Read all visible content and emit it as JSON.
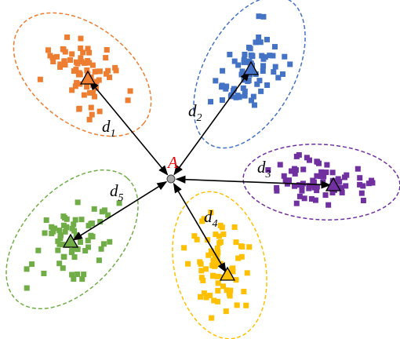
{
  "center": {
    "label": "A"
  },
  "clusters": [
    {
      "color": "#ed7d31",
      "distance": {
        "letter": "d",
        "subscript": "1"
      }
    },
    {
      "color": "#4472c4",
      "distance": {
        "letter": "d",
        "subscript": "2"
      }
    },
    {
      "color": "#7030a0",
      "distance": {
        "letter": "d",
        "subscript": "3"
      }
    },
    {
      "color": "#ffc000",
      "distance": {
        "letter": "d",
        "subscript": "4"
      }
    },
    {
      "color": "#70ad47",
      "distance": {
        "letter": "d",
        "subscript": "5"
      }
    }
  ]
}
